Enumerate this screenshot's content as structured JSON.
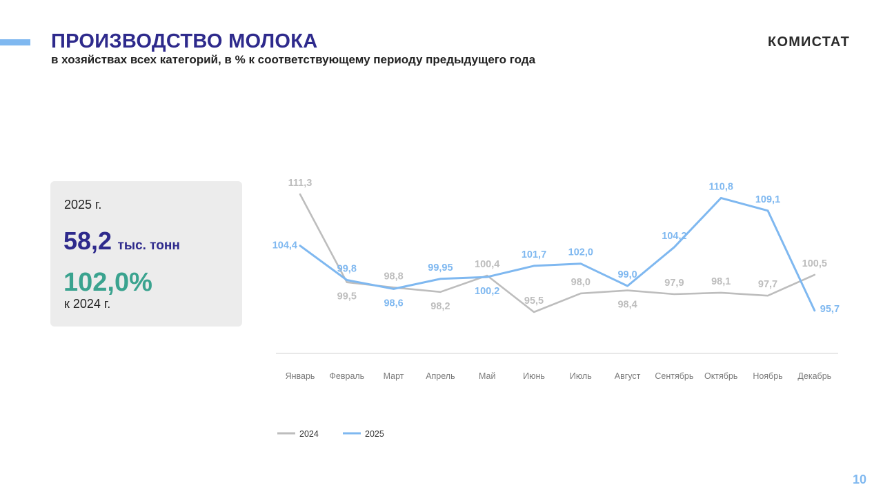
{
  "header": {
    "title": "ПРОИЗВОДСТВО  МОЛОКА",
    "subtitle": "в хозяйствах всех категорий, в % к соответствующему периоду предыдущего года",
    "logo": "КОМИСТАТ"
  },
  "info_card": {
    "year": "2025 г.",
    "volume_value": "58,2",
    "volume_unit": "тыс. тонн",
    "percent": "102,0%",
    "percent_note": "к 2024 г."
  },
  "page_number": "10",
  "colors": {
    "title": "#2e2a8c",
    "accent": "#7fb8f0",
    "series_2024": "#bdbdbd",
    "series_2025": "#7fb8f0",
    "percent": "#3aa38f"
  },
  "chart_data": {
    "type": "line",
    "categories": [
      "Январь",
      "Февраль",
      "Март",
      "Апрель",
      "Май",
      "Июнь",
      "Июль",
      "Август",
      "Сентябрь",
      "Октябрь",
      "Ноябрь",
      "Декабрь"
    ],
    "series": [
      {
        "name": "2024",
        "values": [
          111.3,
          99.5,
          98.8,
          98.2,
          100.4,
          95.5,
          98.0,
          98.4,
          97.9,
          98.1,
          97.7,
          100.5
        ],
        "labels": [
          "111,3",
          "99,5",
          "98,8",
          "98,2",
          "100,4",
          "95,5",
          "98,0",
          "98,4",
          "97,9",
          "98,1",
          "97,7",
          "100,5"
        ],
        "label_pos": [
          "above",
          "below",
          "above",
          "below",
          "above",
          "above",
          "above",
          "below",
          "above",
          "above",
          "above",
          "above"
        ]
      },
      {
        "name": "2025",
        "values": [
          104.4,
          99.8,
          98.6,
          99.95,
          100.2,
          101.7,
          102.0,
          99.0,
          104.2,
          110.8,
          109.1,
          95.7
        ],
        "labels": [
          "104,4",
          "99,8",
          "98,6",
          "99,95",
          "100,2",
          "101,7",
          "102,0",
          "99,0",
          "104,2",
          "110,8",
          "109,1",
          "95,7"
        ],
        "label_pos": [
          "left",
          "above",
          "below",
          "above",
          "below",
          "above",
          "above",
          "above",
          "above",
          "above",
          "above",
          "right"
        ]
      }
    ],
    "ylim": [
      93,
      113
    ],
    "grid": false,
    "legend": "bottom-left"
  }
}
